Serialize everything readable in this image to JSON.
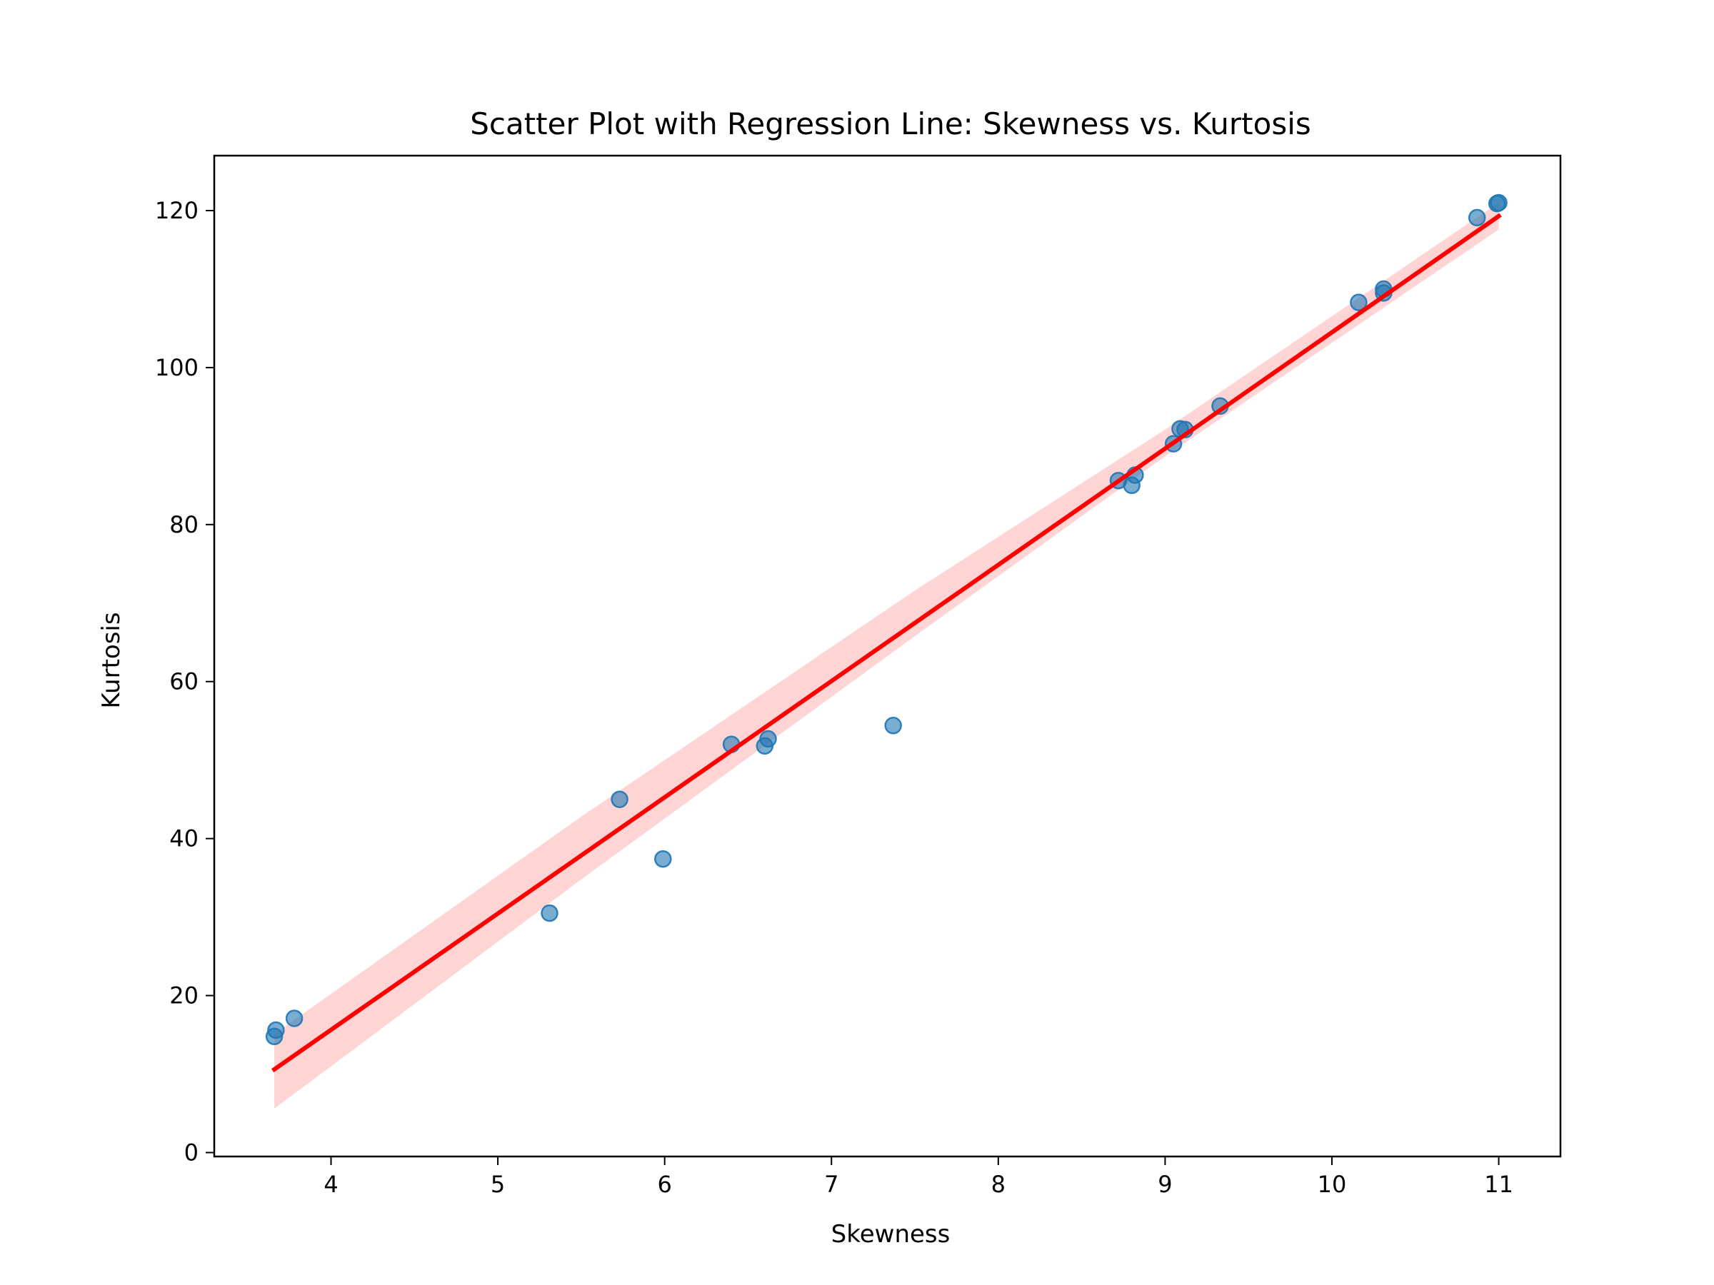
{
  "chart_data": {
    "type": "scatter",
    "title": "Scatter Plot with Regression Line: Skewness vs. Kurtosis",
    "xlabel": "Skewness",
    "ylabel": "Kurtosis",
    "xlim": [
      3.3,
      11.37
    ],
    "ylim": [
      -0.5,
      127
    ],
    "xticks": [
      4,
      5,
      6,
      7,
      8,
      9,
      10,
      11
    ],
    "yticks": [
      0,
      20,
      40,
      60,
      80,
      100,
      120
    ],
    "grid": false,
    "legend": "none",
    "series": [
      {
        "type": "scatter",
        "color": "#1f77b4",
        "opacity": 0.6,
        "points": [
          {
            "x": 3.66,
            "y": 14.8
          },
          {
            "x": 3.67,
            "y": 15.6
          },
          {
            "x": 3.78,
            "y": 17.1
          },
          {
            "x": 5.31,
            "y": 30.5
          },
          {
            "x": 5.73,
            "y": 45.0
          },
          {
            "x": 5.99,
            "y": 37.4
          },
          {
            "x": 6.4,
            "y": 52.0
          },
          {
            "x": 6.6,
            "y": 51.8
          },
          {
            "x": 6.62,
            "y": 52.7
          },
          {
            "x": 7.37,
            "y": 54.4
          },
          {
            "x": 8.72,
            "y": 85.6
          },
          {
            "x": 8.8,
            "y": 85.0
          },
          {
            "x": 8.82,
            "y": 86.3
          },
          {
            "x": 9.05,
            "y": 90.3
          },
          {
            "x": 9.09,
            "y": 92.2
          },
          {
            "x": 9.12,
            "y": 92.1
          },
          {
            "x": 9.33,
            "y": 95.1
          },
          {
            "x": 10.16,
            "y": 108.3
          },
          {
            "x": 10.31,
            "y": 109.5
          },
          {
            "x": 10.31,
            "y": 110.0
          },
          {
            "x": 10.87,
            "y": 119.1
          },
          {
            "x": 10.99,
            "y": 120.9
          },
          {
            "x": 11.0,
            "y": 121.0
          }
        ]
      },
      {
        "type": "line",
        "color": "#ff0000",
        "x": [
          3.66,
          11.0
        ],
        "y": [
          10.6,
          119.3
        ],
        "ci_color": "#ffcccc",
        "ci": {
          "x": [
            3.66,
            5.5,
            7.5,
            9.0,
            11.0
          ],
          "lower": [
            5.6,
            34.8,
            65.8,
            88.7,
            117.6
          ],
          "upper": [
            15.1,
            42.8,
            71.6,
            92.1,
            121.0
          ]
        }
      }
    ]
  }
}
